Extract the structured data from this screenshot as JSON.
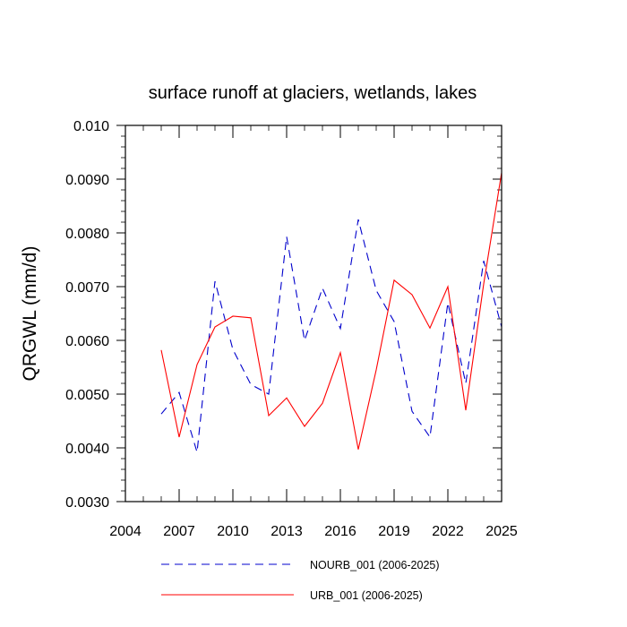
{
  "chart_data": {
    "type": "line",
    "title": "surface runoff at glaciers, wetlands, lakes",
    "xlabel": "",
    "ylabel": "QRGWL  (mm/d)",
    "xlim": [
      2004,
      2025
    ],
    "ylim": [
      0.003,
      0.01
    ],
    "x_ticks": [
      2004,
      2007,
      2010,
      2013,
      2016,
      2019,
      2022,
      2025
    ],
    "x_tick_labels": [
      "2004",
      "2007",
      "2010",
      "2013",
      "2016",
      "2019",
      "2022",
      "2025"
    ],
    "y_ticks": [
      0.003,
      0.004,
      0.005,
      0.006,
      0.007,
      0.008,
      0.009,
      0.01
    ],
    "y_tick_labels": [
      "0.0030",
      "0.0040",
      "0.0050",
      "0.0060",
      "0.0070",
      "0.0080",
      "0.0090",
      "0.010"
    ],
    "x": [
      2006,
      2007,
      2008,
      2009,
      2010,
      2011,
      2012,
      2013,
      2014,
      2015,
      2016,
      2017,
      2018,
      2019,
      2020,
      2021,
      2022,
      2023,
      2024,
      2025
    ],
    "series": [
      {
        "name": "NOURB_001 (2006-2025)",
        "color": "#0000cc",
        "dash": "dashed",
        "values": [
          0.00463,
          0.00503,
          0.00392,
          0.0071,
          0.00583,
          0.00518,
          0.005,
          0.00793,
          0.006,
          0.00697,
          0.00622,
          0.00825,
          0.00693,
          0.00635,
          0.00468,
          0.0042,
          0.0067,
          0.0052,
          0.00748,
          0.00625
        ]
      },
      {
        "name": "URB_001 (2006-2025)",
        "color": "#ff0000",
        "dash": "solid",
        "values": [
          0.00582,
          0.0042,
          0.00555,
          0.00625,
          0.00645,
          0.00642,
          0.0046,
          0.00493,
          0.0044,
          0.00483,
          0.00577,
          0.00397,
          0.00545,
          0.00712,
          0.00685,
          0.00623,
          0.007,
          0.0047,
          0.00705,
          0.00912
        ]
      }
    ],
    "legend_position": "bottom-center"
  }
}
